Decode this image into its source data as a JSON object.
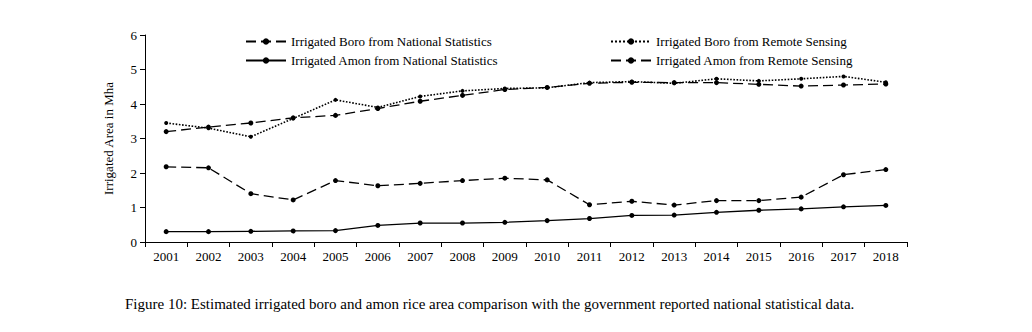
{
  "chart_data": {
    "type": "line",
    "title": "Figure 10: Estimated irrigated boro and amon rice area comparison with the government reported national statistical data.",
    "y_label": "Irrigated Area in Mha",
    "categories": [
      "2001",
      "2002",
      "2003",
      "2004",
      "2005",
      "2006",
      "2007",
      "2008",
      "2009",
      "2010",
      "2011",
      "2012",
      "2013",
      "2014",
      "2015",
      "2016",
      "2017",
      "2018"
    ],
    "ylim": [
      0,
      6
    ],
    "yticks": [
      0,
      1,
      2,
      3,
      4,
      5,
      6
    ],
    "grid": false,
    "legend": "top",
    "series": [
      {
        "name": "Irrigated Boro from National Statistics",
        "color": "#000000",
        "line_style": "dashed",
        "marker": "circle",
        "values": [
          3.2,
          3.33,
          3.45,
          3.6,
          3.67,
          3.87,
          4.08,
          4.25,
          4.42,
          4.48,
          4.6,
          4.63,
          4.62,
          4.62,
          4.57,
          4.52,
          4.55,
          4.58
        ]
      },
      {
        "name": "Irrigated Amon from National Statistics",
        "color": "#000000",
        "line_style": "solid",
        "marker": "circle",
        "values": [
          0.3,
          0.3,
          0.31,
          0.32,
          0.33,
          0.48,
          0.55,
          0.55,
          0.57,
          0.62,
          0.68,
          0.77,
          0.78,
          0.86,
          0.92,
          0.96,
          1.02,
          1.06
        ]
      },
      {
        "name": "Irrigated Boro from Remote Sensing",
        "color": "#000000",
        "line_style": "dotted",
        "marker": "circle",
        "values": [
          3.45,
          3.3,
          3.05,
          3.58,
          4.12,
          3.9,
          4.22,
          4.38,
          4.45,
          4.47,
          4.62,
          4.65,
          4.6,
          4.73,
          4.67,
          4.73,
          4.8,
          4.63
        ]
      },
      {
        "name": "Irrigated Amon from Remote Sensing",
        "color": "#000000",
        "line_style": "dashed",
        "marker": "circle",
        "values": [
          2.18,
          2.15,
          1.4,
          1.22,
          1.78,
          1.63,
          1.7,
          1.78,
          1.85,
          1.8,
          1.08,
          1.18,
          1.07,
          1.2,
          1.2,
          1.3,
          1.95,
          2.1
        ]
      }
    ]
  }
}
